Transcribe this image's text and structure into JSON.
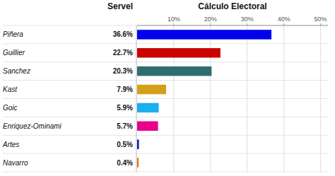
{
  "chart_data": {
    "type": "bar",
    "orientation": "horizontal",
    "title": "Cálculo Electoral",
    "annotations": [
      "Servel"
    ],
    "categories": [
      "Piñera",
      "Guillier",
      "Sanchez",
      "Kast",
      "Goic",
      "Enriquez-Ominami",
      "Artes",
      "Navarro"
    ],
    "values": [
      36.6,
      22.7,
      20.3,
      7.9,
      5.9,
      5.7,
      0.5,
      0.4
    ],
    "value_labels": [
      "36.6%",
      "22.7%",
      "20.3%",
      "7.9%",
      "5.9%",
      "5.7%",
      "0.5%",
      "0.4%"
    ],
    "colors": [
      "#0000ee",
      "#cc0000",
      "#2e6e6e",
      "#d4a017",
      "#1aafed",
      "#e8008a",
      "#1a1aaa",
      "#e86a00"
    ],
    "xlim": [
      0,
      52
    ],
    "xticks": [
      {
        "value": 10,
        "label": "10%"
      },
      {
        "value": 20,
        "label": "20%"
      },
      {
        "value": 30,
        "label": "30%"
      },
      {
        "value": 40,
        "label": "40%"
      },
      {
        "value": 50,
        "label": "50%"
      }
    ],
    "grid": true,
    "data_labels": true
  }
}
